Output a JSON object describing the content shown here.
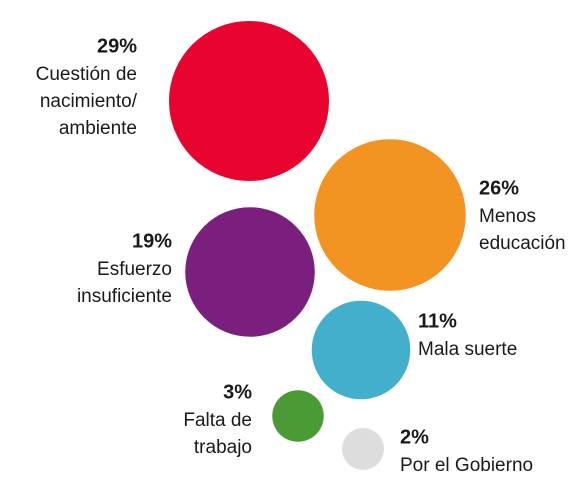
{
  "chart_data": {
    "type": "bubble",
    "categories": [
      [
        "Cuestión de",
        "nacimiento/",
        "ambiente"
      ],
      [
        "Menos",
        "educación"
      ],
      [
        "Esfuerzo",
        "insuficiente"
      ],
      [
        "Mala suerte"
      ],
      [
        "Falta de",
        "trabajo"
      ],
      [
        "Por el Gobierno"
      ]
    ],
    "values": [
      29,
      26,
      19,
      11,
      3,
      2
    ],
    "value_labels": [
      "29%",
      "26%",
      "19%",
      "11%",
      "3%",
      "2%"
    ],
    "colors": [
      "#e8042f",
      "#f39322",
      "#7b1f7e",
      "#42b0cd",
      "#4a9a35",
      "#dddddd"
    ]
  }
}
